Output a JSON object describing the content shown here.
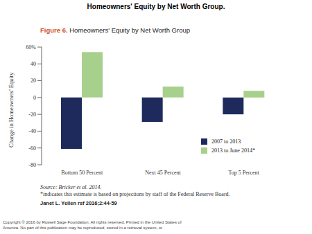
{
  "slide": {
    "header": "Homeowners' Equity by Net Worth Group.",
    "citation": "Janet L. Yellen rsf 2016;2:44-59",
    "copyright": [
      "Copyright © 2016 by Russell Sage Foundation. All rights reserved. Printed in the United States of",
      "America. No part of this publication may be reproduced, stored in a retrieval system, or"
    ]
  },
  "chart_data": {
    "type": "bar",
    "figure_label": "Figure 6.",
    "title": "Homeowners' Equity by Net Worth Group",
    "y_label": "Change in Homeowners' Equity",
    "categories": [
      "Bottom 50 Percent",
      "Next 45 Percent",
      "Top 5 Percent"
    ],
    "series": [
      {
        "name": "2007 to 2013",
        "color": "#1f2a5c",
        "values": [
          -61,
          -29,
          -20
        ]
      },
      {
        "name": "2013 to June 2014*",
        "color": "#a8d08d",
        "values": [
          54,
          13,
          8
        ]
      }
    ],
    "ylim": [
      -80,
      60
    ],
    "yticks": [
      -80,
      -60,
      -40,
      -20,
      0,
      20,
      40,
      {
        "value": 60,
        "label": "60%"
      }
    ],
    "legend": "lower right",
    "grid": false,
    "annotations": [
      "Source: Bricker et al. 2014.",
      "*indicates this estimate is based on projections by staff of the Federal Reserve Board."
    ]
  }
}
